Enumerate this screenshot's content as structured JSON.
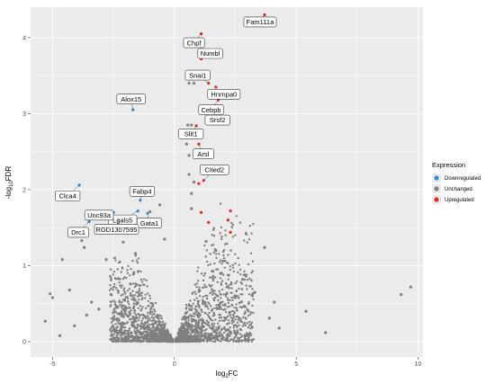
{
  "chart_data": {
    "type": "scatter",
    "title": "",
    "xlabel": "log2FC",
    "ylabel": "-log10FDR",
    "xlim": [
      -5.9,
      10.2
    ],
    "ylim": [
      -0.2,
      4.4
    ],
    "x_ticks": [
      -5,
      0,
      5,
      10
    ],
    "y_ticks": [
      0,
      1,
      2,
      3,
      4
    ],
    "grid": true,
    "legend": {
      "title": "Expression",
      "position": "right",
      "entries": [
        {
          "name": "Downregulated",
          "color": "#2f8fd0"
        },
        {
          "name": "Unchanged",
          "color": "#7f7f7f"
        },
        {
          "name": "Upregulated",
          "color": "#e8271f"
        }
      ]
    },
    "series": [
      {
        "name": "Downregulated",
        "color": "#2f8fd0",
        "points": [
          {
            "x": -1.7,
            "y": 3.05,
            "label": "Alox15"
          },
          {
            "x": -3.9,
            "y": 2.06,
            "label": "Clca4"
          },
          {
            "x": -1.4,
            "y": 1.86,
            "label": "Fabp4"
          },
          {
            "x": -1.5,
            "y": 1.72,
            "label": "Lgals5"
          },
          {
            "x": -1.1,
            "y": 1.69,
            "label": "Gata1"
          },
          {
            "x": -2.5,
            "y": 1.7,
            "label": "Unc93a"
          },
          {
            "x": -3.5,
            "y": 1.58,
            "label": "Drc1"
          },
          {
            "x": -2.3,
            "y": 1.62,
            "label": "RGD1307595"
          }
        ]
      },
      {
        "name": "Upregulated",
        "color": "#e8271f",
        "points": [
          {
            "x": 3.7,
            "y": 4.3,
            "label": "Fam111a"
          },
          {
            "x": 1.1,
            "y": 4.05,
            "label": "Chpf"
          },
          {
            "x": 1.1,
            "y": 3.72,
            "label": "Numbl"
          },
          {
            "x": 1.4,
            "y": 3.4,
            "label": "Snai1"
          },
          {
            "x": 1.7,
            "y": 3.35,
            "label": "Hnrnpa0"
          },
          {
            "x": 1.8,
            "y": 3.18,
            "label": "Cebpb"
          },
          {
            "x": 1.4,
            "y": 2.88,
            "label": "Srsf2"
          },
          {
            "x": 0.9,
            "y": 2.84,
            "label": "Slit1"
          },
          {
            "x": 1.0,
            "y": 2.6,
            "label": "Arsl"
          },
          {
            "x": 1.2,
            "y": 2.12,
            "label": "Cited2"
          },
          {
            "x": 1.0,
            "y": 2.08,
            "label": ""
          },
          {
            "x": 1.1,
            "y": 1.7,
            "label": ""
          },
          {
            "x": 1.4,
            "y": 1.57,
            "label": ""
          },
          {
            "x": 2.3,
            "y": 1.72,
            "label": ""
          },
          {
            "x": 2.2,
            "y": 1.6,
            "label": ""
          },
          {
            "x": 2.3,
            "y": 1.44,
            "label": ""
          }
        ]
      },
      {
        "name": "Unchanged",
        "color": "#7f7f7f",
        "points": [
          {
            "x": -5.3,
            "y": 0.27
          },
          {
            "x": -5.1,
            "y": 0.63
          },
          {
            "x": -5.0,
            "y": 0.58
          },
          {
            "x": -4.7,
            "y": 0.08
          },
          {
            "x": -4.6,
            "y": 1.08
          },
          {
            "x": -4.3,
            "y": 0.68
          },
          {
            "x": -4.1,
            "y": 0.21
          },
          {
            "x": -3.8,
            "y": 1.33
          },
          {
            "x": -3.7,
            "y": 1.24
          },
          {
            "x": -3.4,
            "y": 0.52
          },
          {
            "x": -3.6,
            "y": 0.35
          },
          {
            "x": -3.1,
            "y": 0.43
          },
          {
            "x": -2.8,
            "y": 1.08
          },
          {
            "x": -2.6,
            "y": 0.62
          },
          {
            "x": -2.5,
            "y": 0.31
          },
          {
            "x": -2.3,
            "y": 0.83
          },
          {
            "x": -2.1,
            "y": 1.31
          },
          {
            "x": -2.0,
            "y": 0.44
          },
          {
            "x": -1.8,
            "y": 0.76
          },
          {
            "x": -1.6,
            "y": 1.16
          },
          {
            "x": -1.5,
            "y": 0.51
          },
          {
            "x": -1.0,
            "y": 1.71
          },
          {
            "x": -0.6,
            "y": 1.8
          },
          {
            "x": -0.4,
            "y": 1.35
          },
          {
            "x": 0.5,
            "y": 2.6
          },
          {
            "x": 0.6,
            "y": 2.45
          },
          {
            "x": 0.55,
            "y": 2.85
          },
          {
            "x": 0.7,
            "y": 2.85
          },
          {
            "x": 0.6,
            "y": 3.4
          },
          {
            "x": 0.8,
            "y": 3.4
          },
          {
            "x": 0.6,
            "y": 2.2
          },
          {
            "x": 0.8,
            "y": 2.1
          },
          {
            "x": 0.7,
            "y": 1.95
          },
          {
            "x": 1.1,
            "y": 2.3
          },
          {
            "x": 0.7,
            "y": 1.75
          },
          {
            "x": 1.3,
            "y": 1.32
          },
          {
            "x": 1.7,
            "y": 1.2
          },
          {
            "x": 1.9,
            "y": 0.9
          },
          {
            "x": 2.0,
            "y": 1.06
          },
          {
            "x": 2.2,
            "y": 0.72
          },
          {
            "x": 2.5,
            "y": 0.58
          },
          {
            "x": 2.8,
            "y": 0.82
          },
          {
            "x": 3.0,
            "y": 0.42
          },
          {
            "x": 3.3,
            "y": 0.65
          },
          {
            "x": 3.7,
            "y": 1.24
          },
          {
            "x": 3.9,
            "y": 0.31
          },
          {
            "x": 4.1,
            "y": 0.52
          },
          {
            "x": 4.3,
            "y": 0.18
          },
          {
            "x": 5.4,
            "y": 0.4
          },
          {
            "x": 6.2,
            "y": 0.12
          },
          {
            "x": 9.3,
            "y": 0.62
          },
          {
            "x": 9.7,
            "y": 0.72
          }
        ]
      }
    ]
  }
}
